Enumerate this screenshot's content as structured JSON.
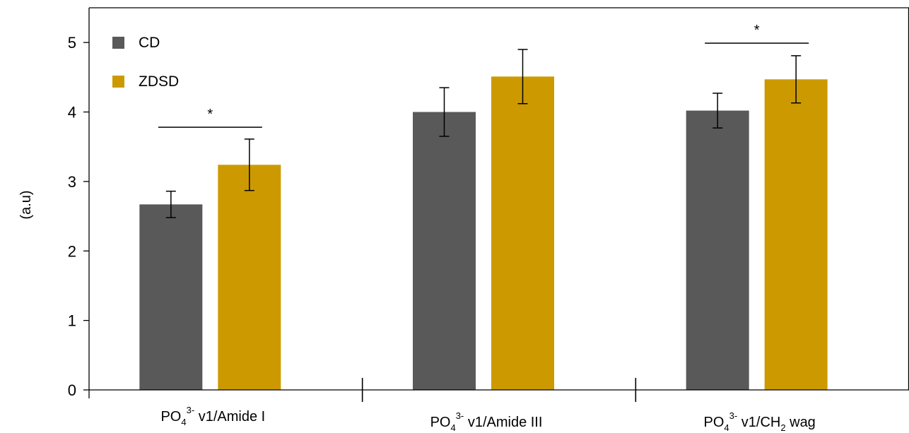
{
  "chart_data": {
    "type": "bar",
    "ylabel": "(a.u)",
    "ylim": [
      0,
      5.5
    ],
    "yticks": [
      "0",
      "1",
      "2",
      "3",
      "4",
      "5"
    ],
    "categories": [
      {
        "base": "PO",
        "sub": "4",
        "sup": "3-",
        "rest": " v1/Amide I"
      },
      {
        "base": "PO",
        "sub": "4",
        "sup": "3-",
        "rest": " v1/Amide III"
      },
      {
        "base": "PO",
        "sub": "4",
        "sup": "3-",
        "rest": " v1/CH",
        "sub2": "2",
        "rest2": " wag"
      }
    ],
    "series": [
      {
        "name": "CD",
        "color": "#595959",
        "values": [
          2.67,
          4.0,
          4.02
        ],
        "errors": [
          0.19,
          0.35,
          0.25
        ]
      },
      {
        "name": "ZDSD",
        "color": "#cc9a00",
        "values": [
          3.24,
          4.51,
          4.47
        ],
        "errors": [
          0.37,
          0.39,
          0.34
        ]
      }
    ],
    "significance": [
      {
        "category": 0,
        "label": "*",
        "level": 3.78
      },
      {
        "category": 2,
        "label": "*",
        "level": 4.99
      }
    ],
    "legend": "top-left",
    "grid": false
  }
}
